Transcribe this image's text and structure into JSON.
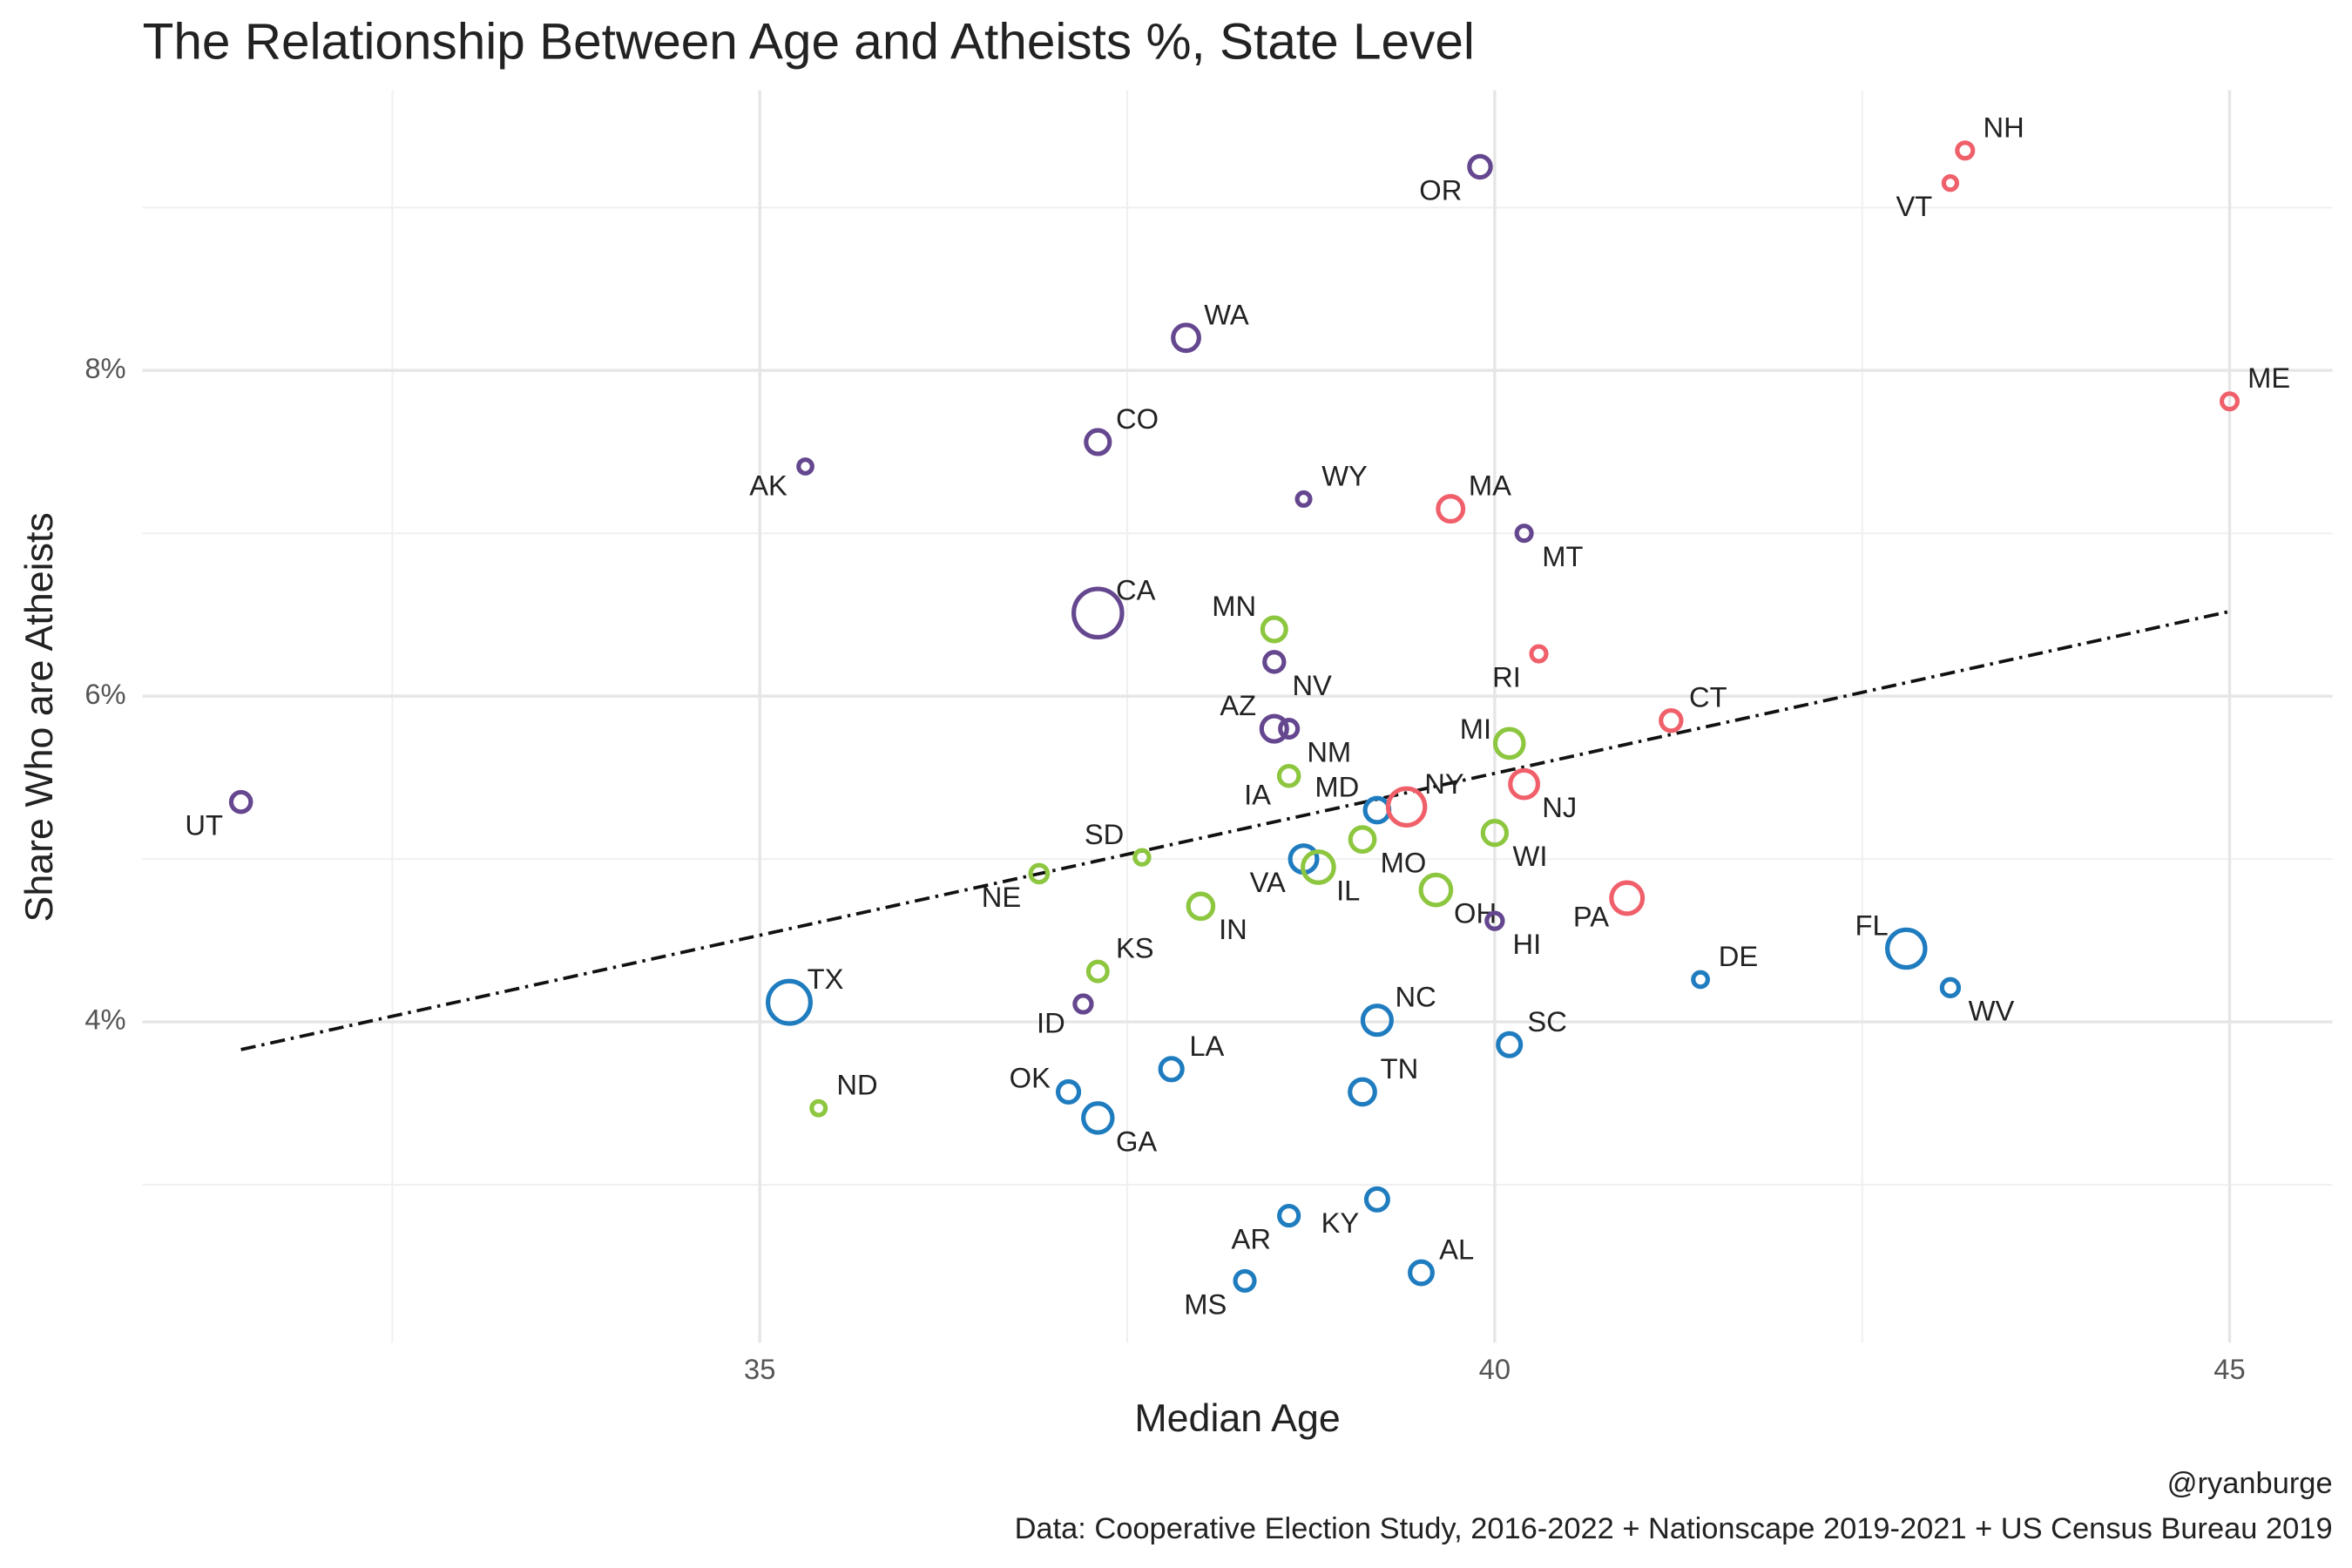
{
  "chart_data": {
    "type": "scatter",
    "title": "The Relationship Between Age and Atheists %, State Level",
    "x_label": "Median Age",
    "y_label": "Share Who are Atheists",
    "credit": "@ryanburge",
    "source": "Data: Cooperative Election Study, 2016-2022 + Nationscape 2019-2021 + US Census Bureau 2019",
    "labels": [
      "UT",
      "AK",
      "TX",
      "ND",
      "NE",
      "SD",
      "ID",
      "KS",
      "CO",
      "CA",
      "OK",
      "GA",
      "WA",
      "IN",
      "LA",
      "MN",
      "NV",
      "AZ",
      "NM",
      "IA",
      "WY",
      "VA",
      "IL",
      "MD",
      "MO",
      "NY",
      "OH",
      "AR",
      "MS",
      "KY",
      "AL",
      "NC",
      "TN",
      "OR",
      "MA",
      "MT",
      "RI",
      "MI",
      "NJ",
      "WI",
      "HI",
      "SC",
      "PA",
      "CT",
      "DE",
      "FL",
      "WV",
      "VT",
      "NH",
      "ME"
    ],
    "x": [
      31.47,
      35.31,
      35.2,
      35.4,
      36.9,
      37.6,
      37.2,
      37.3,
      37.3,
      37.3,
      37.1,
      37.3,
      37.9,
      38.0,
      37.8,
      38.5,
      38.5,
      38.5,
      38.6,
      38.6,
      38.7,
      38.7,
      38.8,
      39.2,
      39.1,
      39.4,
      39.6,
      38.6,
      38.3,
      39.2,
      39.5,
      39.2,
      39.1,
      39.9,
      39.7,
      40.2,
      40.3,
      40.1,
      40.2,
      40.0,
      40.0,
      40.1,
      40.9,
      41.2,
      41.4,
      42.8,
      43.1,
      43.1,
      43.2,
      45.0
    ],
    "values": [
      5.35,
      7.41,
      4.12,
      3.47,
      4.91,
      5.01,
      4.11,
      4.31,
      7.56,
      6.51,
      3.57,
      3.41,
      8.2,
      4.71,
      3.71,
      6.41,
      6.21,
      5.8,
      5.8,
      5.51,
      7.21,
      5.0,
      4.95,
      5.3,
      5.12,
      5.32,
      4.81,
      2.81,
      2.41,
      2.91,
      2.46,
      4.01,
      3.57,
      9.25,
      7.15,
      7.0,
      6.26,
      5.71,
      5.46,
      5.16,
      4.62,
      3.86,
      4.76,
      5.85,
      4.26,
      4.45,
      4.21,
      9.15,
      9.35,
      7.81
    ],
    "sizes": [
      3.2,
      0.73,
      29,
      0.78,
      1.96,
      0.89,
      1.8,
      2.9,
      5.8,
      39.5,
      4,
      10.7,
      7.7,
      6.8,
      4.6,
      5.7,
      3.1,
      7.2,
      2.1,
      3.2,
      0.58,
      8.6,
      12.8,
      6.2,
      6.2,
      20.2,
      11.8,
      3,
      2.96,
      4.5,
      5,
      10.4,
      6.9,
      4.2,
      7,
      1.08,
      1.1,
      10,
      9.3,
      5.9,
      1.46,
      5.1,
      13,
      3.6,
      0.99,
      21.5,
      1.8,
      0.64,
      1.38,
      1.36
    ],
    "colors": [
      "#65478f",
      "#65478f",
      "#1f7cbf",
      "#8dc63f",
      "#8dc63f",
      "#8dc63f",
      "#65478f",
      "#8dc63f",
      "#65478f",
      "#65478f",
      "#1f7cbf",
      "#1f7cbf",
      "#65478f",
      "#8dc63f",
      "#1f7cbf",
      "#8dc63f",
      "#65478f",
      "#65478f",
      "#65478f",
      "#8dc63f",
      "#65478f",
      "#1f7cbf",
      "#8dc63f",
      "#1f7cbf",
      "#8dc63f",
      "#f0606a",
      "#8dc63f",
      "#1f7cbf",
      "#1f7cbf",
      "#1f7cbf",
      "#1f7cbf",
      "#1f7cbf",
      "#1f7cbf",
      "#65478f",
      "#f0606a",
      "#65478f",
      "#f0606a",
      "#8dc63f",
      "#f0606a",
      "#8dc63f",
      "#65478f",
      "#1f7cbf",
      "#f0606a",
      "#f0606a",
      "#1f7cbf",
      "#1f7cbf",
      "#1f7cbf",
      "#f0606a",
      "#f0606a",
      "#f0606a"
    ],
    "trend_line": {
      "x": [
        31.47,
        45
      ],
      "values": [
        3.83,
        6.52
      ]
    },
    "xlim": [
      30.8,
      45.7
    ],
    "ylim": [
      2.03,
      9.72
    ],
    "xticks": [
      35,
      40,
      45
    ],
    "yticks": [
      {
        "value": 4,
        "label": "4%"
      },
      {
        "value": 6,
        "label": "6%"
      },
      {
        "value": 8,
        "label": "8%"
      }
    ],
    "grid": true
  }
}
